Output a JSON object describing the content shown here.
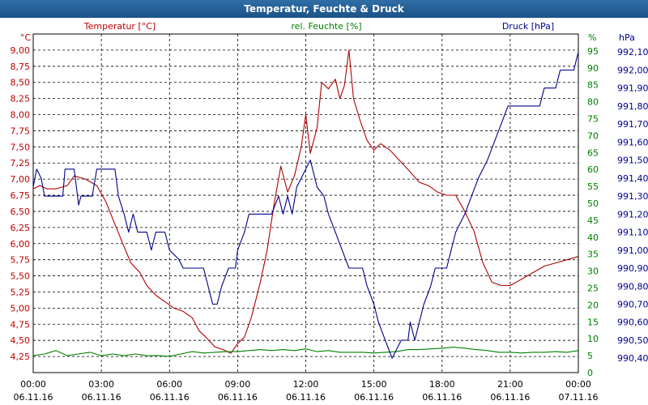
{
  "chart_data": {
    "type": "line",
    "title": "Temperatur, Feuchte & Druck",
    "x_ticks": [
      {
        "time": "00:00",
        "date": "06.11.16"
      },
      {
        "time": "03:00",
        "date": "06.11.16"
      },
      {
        "time": "06:00",
        "date": "06.11.16"
      },
      {
        "time": "09:00",
        "date": "06.11.16"
      },
      {
        "time": "12:00",
        "date": "06.11.16"
      },
      {
        "time": "15:00",
        "date": "06.11.16"
      },
      {
        "time": "18:00",
        "date": "06.11.16"
      },
      {
        "time": "21:00",
        "date": "06.11.16"
      },
      {
        "time": "00:00",
        "date": "07.11.16"
      }
    ],
    "x_range_hours": [
      0,
      24
    ],
    "axes": {
      "temp": {
        "label": "Temperatur [°C]",
        "unit": "°C",
        "min": 4.0,
        "max": 9.25,
        "ticks": [
          "9,00",
          "8,75",
          "8,50",
          "8,25",
          "8,00",
          "7,75",
          "7,50",
          "7,25",
          "7,00",
          "6,75",
          "6,50",
          "6,25",
          "6,00",
          "5,75",
          "5,50",
          "5,25",
          "5,00",
          "4,75",
          "4,50",
          "4,25"
        ],
        "color": "#c00000"
      },
      "hum": {
        "label": "rel. Feuchte [%]",
        "unit": "%",
        "min": 0,
        "max": 100,
        "ticks": [
          "95",
          "90",
          "85",
          "80",
          "75",
          "70",
          "65",
          "60",
          "55",
          "50",
          "45",
          "40",
          "35",
          "30",
          "25",
          "20",
          "15",
          "10",
          "5",
          "0"
        ],
        "color": "#008000"
      },
      "pres": {
        "label": "Druck [hPa]",
        "unit": "hPa",
        "min": 990.32,
        "max": 992.2,
        "ticks": [
          "992,10",
          "992,00",
          "991,90",
          "991,80",
          "991,70",
          "991,60",
          "991,50",
          "991,40",
          "991,30",
          "991,20",
          "991,10",
          "991,00",
          "990,90",
          "990,80",
          "990,70",
          "990,60",
          "990,50",
          "990,40"
        ],
        "color": "#00008b"
      }
    },
    "series": [
      {
        "name": "Temperatur",
        "axis": "temp",
        "color": "#b00000",
        "points": [
          [
            0,
            6.85
          ],
          [
            0.3,
            6.9
          ],
          [
            0.6,
            6.85
          ],
          [
            1.0,
            6.85
          ],
          [
            1.5,
            6.9
          ],
          [
            1.8,
            7.05
          ],
          [
            2.3,
            7.0
          ],
          [
            2.8,
            6.9
          ],
          [
            3.2,
            6.65
          ],
          [
            3.6,
            6.3
          ],
          [
            4.0,
            5.95
          ],
          [
            4.3,
            5.7
          ],
          [
            4.7,
            5.55
          ],
          [
            5.0,
            5.35
          ],
          [
            5.4,
            5.2
          ],
          [
            5.8,
            5.1
          ],
          [
            6.2,
            5.0
          ],
          [
            6.6,
            4.95
          ],
          [
            7.0,
            4.85
          ],
          [
            7.3,
            4.65
          ],
          [
            7.6,
            4.55
          ],
          [
            8.0,
            4.4
          ],
          [
            8.4,
            4.35
          ],
          [
            8.7,
            4.3
          ],
          [
            9.0,
            4.45
          ],
          [
            9.3,
            4.55
          ],
          [
            9.6,
            4.85
          ],
          [
            10.0,
            5.4
          ],
          [
            10.3,
            5.9
          ],
          [
            10.6,
            6.6
          ],
          [
            10.9,
            7.2
          ],
          [
            11.2,
            6.8
          ],
          [
            11.5,
            7.05
          ],
          [
            11.8,
            7.5
          ],
          [
            12.0,
            8.0
          ],
          [
            12.2,
            7.4
          ],
          [
            12.5,
            7.8
          ],
          [
            12.7,
            8.5
          ],
          [
            13.0,
            8.4
          ],
          [
            13.3,
            8.55
          ],
          [
            13.5,
            8.25
          ],
          [
            13.7,
            8.45
          ],
          [
            13.9,
            9.0
          ],
          [
            14.1,
            8.25
          ],
          [
            14.4,
            7.9
          ],
          [
            14.7,
            7.6
          ],
          [
            15.0,
            7.45
          ],
          [
            15.3,
            7.55
          ],
          [
            15.7,
            7.45
          ],
          [
            16.1,
            7.3
          ],
          [
            16.5,
            7.15
          ],
          [
            17.0,
            6.95
          ],
          [
            17.4,
            6.9
          ],
          [
            17.8,
            6.8
          ],
          [
            18.2,
            6.75
          ],
          [
            18.6,
            6.75
          ],
          [
            19.0,
            6.5
          ],
          [
            19.4,
            6.2
          ],
          [
            19.8,
            5.7
          ],
          [
            20.2,
            5.4
          ],
          [
            20.6,
            5.35
          ],
          [
            21.0,
            5.35
          ],
          [
            21.5,
            5.45
          ],
          [
            22.0,
            5.55
          ],
          [
            22.5,
            5.65
          ],
          [
            23.0,
            5.7
          ],
          [
            23.5,
            5.75
          ],
          [
            24.0,
            5.8
          ]
        ]
      },
      {
        "name": "rel. Feuchte",
        "axis": "hum",
        "color": "#008000",
        "points": [
          [
            0,
            5
          ],
          [
            0.5,
            5.5
          ],
          [
            1.0,
            6.5
          ],
          [
            1.5,
            5
          ],
          [
            2.0,
            5.5
          ],
          [
            2.5,
            6
          ],
          [
            3.0,
            5
          ],
          [
            3.5,
            5.5
          ],
          [
            4.0,
            5
          ],
          [
            4.5,
            5.5
          ],
          [
            5.0,
            5
          ],
          [
            5.5,
            5
          ],
          [
            6.0,
            4.8
          ],
          [
            6.5,
            5.5
          ],
          [
            7.0,
            6.2
          ],
          [
            7.5,
            5.8
          ],
          [
            8.0,
            6
          ],
          [
            8.5,
            6.2
          ],
          [
            9.0,
            6.2
          ],
          [
            9.5,
            6.5
          ],
          [
            10.0,
            6.8
          ],
          [
            10.5,
            6.5
          ],
          [
            11.0,
            6.8
          ],
          [
            11.5,
            6.5
          ],
          [
            12.0,
            7
          ],
          [
            12.5,
            6.2
          ],
          [
            13.0,
            6.5
          ],
          [
            13.5,
            6
          ],
          [
            14.0,
            6
          ],
          [
            14.5,
            6
          ],
          [
            15.0,
            5.8
          ],
          [
            15.5,
            6
          ],
          [
            16.0,
            6.2
          ],
          [
            16.5,
            6.8
          ],
          [
            17.0,
            6.8
          ],
          [
            17.5,
            7
          ],
          [
            18.0,
            7.2
          ],
          [
            18.5,
            7.5
          ],
          [
            19.0,
            7.2
          ],
          [
            19.5,
            6.8
          ],
          [
            20.0,
            6.5
          ],
          [
            20.5,
            6
          ],
          [
            21.0,
            6
          ],
          [
            21.5,
            5.8
          ],
          [
            22.0,
            6
          ],
          [
            22.5,
            6
          ],
          [
            23.0,
            6.2
          ],
          [
            23.5,
            6
          ],
          [
            24.0,
            6.5
          ]
        ]
      },
      {
        "name": "Druck",
        "axis": "pres",
        "color": "#00008b",
        "points": [
          [
            0,
            991.35
          ],
          [
            0.15,
            991.45
          ],
          [
            0.35,
            991.4
          ],
          [
            0.5,
            991.3
          ],
          [
            1.0,
            991.3
          ],
          [
            1.3,
            991.3
          ],
          [
            1.4,
            991.45
          ],
          [
            1.8,
            991.45
          ],
          [
            2.0,
            991.25
          ],
          [
            2.1,
            991.3
          ],
          [
            2.5,
            991.3
          ],
          [
            2.6,
            991.3
          ],
          [
            2.8,
            991.45
          ],
          [
            3.6,
            991.45
          ],
          [
            3.75,
            991.3
          ],
          [
            4.0,
            991.2
          ],
          [
            4.2,
            991.1
          ],
          [
            4.4,
            991.2
          ],
          [
            4.6,
            991.1
          ],
          [
            5.0,
            991.1
          ],
          [
            5.2,
            991.0
          ],
          [
            5.4,
            991.1
          ],
          [
            5.8,
            991.1
          ],
          [
            6.0,
            991.0
          ],
          [
            6.4,
            990.95
          ],
          [
            6.6,
            990.9
          ],
          [
            7.0,
            990.9
          ],
          [
            7.5,
            990.9
          ],
          [
            7.7,
            990.8
          ],
          [
            7.9,
            990.7
          ],
          [
            8.1,
            990.7
          ],
          [
            8.3,
            990.8
          ],
          [
            8.6,
            990.9
          ],
          [
            8.9,
            990.9
          ],
          [
            9.0,
            991.0
          ],
          [
            9.3,
            991.1
          ],
          [
            9.5,
            991.2
          ],
          [
            10.5,
            991.2
          ],
          [
            10.8,
            991.3
          ],
          [
            11.0,
            991.2
          ],
          [
            11.2,
            991.3
          ],
          [
            11.4,
            991.2
          ],
          [
            11.6,
            991.35
          ],
          [
            12.2,
            991.5
          ],
          [
            12.5,
            991.35
          ],
          [
            12.8,
            991.3
          ],
          [
            13.0,
            991.2
          ],
          [
            13.3,
            991.1
          ],
          [
            13.6,
            991.0
          ],
          [
            13.9,
            990.9
          ],
          [
            14.5,
            990.9
          ],
          [
            14.7,
            990.8
          ],
          [
            15.0,
            990.7
          ],
          [
            15.2,
            990.6
          ],
          [
            15.5,
            990.5
          ],
          [
            15.8,
            990.4
          ],
          [
            16.0,
            990.45
          ],
          [
            16.2,
            990.5
          ],
          [
            16.5,
            990.5
          ],
          [
            16.6,
            990.6
          ],
          [
            16.8,
            990.5
          ],
          [
            17.0,
            990.6
          ],
          [
            17.2,
            990.7
          ],
          [
            17.5,
            990.8
          ],
          [
            17.7,
            990.9
          ],
          [
            18.2,
            990.9
          ],
          [
            18.4,
            991.0
          ],
          [
            18.6,
            991.1
          ],
          [
            19.0,
            991.2
          ],
          [
            19.3,
            991.3
          ],
          [
            19.6,
            991.4
          ],
          [
            20.0,
            991.5
          ],
          [
            20.3,
            991.6
          ],
          [
            20.6,
            991.7
          ],
          [
            20.9,
            991.8
          ],
          [
            22.3,
            991.8
          ],
          [
            22.5,
            991.9
          ],
          [
            23.0,
            991.9
          ],
          [
            23.2,
            992.0
          ],
          [
            23.8,
            992.0
          ],
          [
            24.0,
            992.1
          ]
        ]
      }
    ]
  }
}
